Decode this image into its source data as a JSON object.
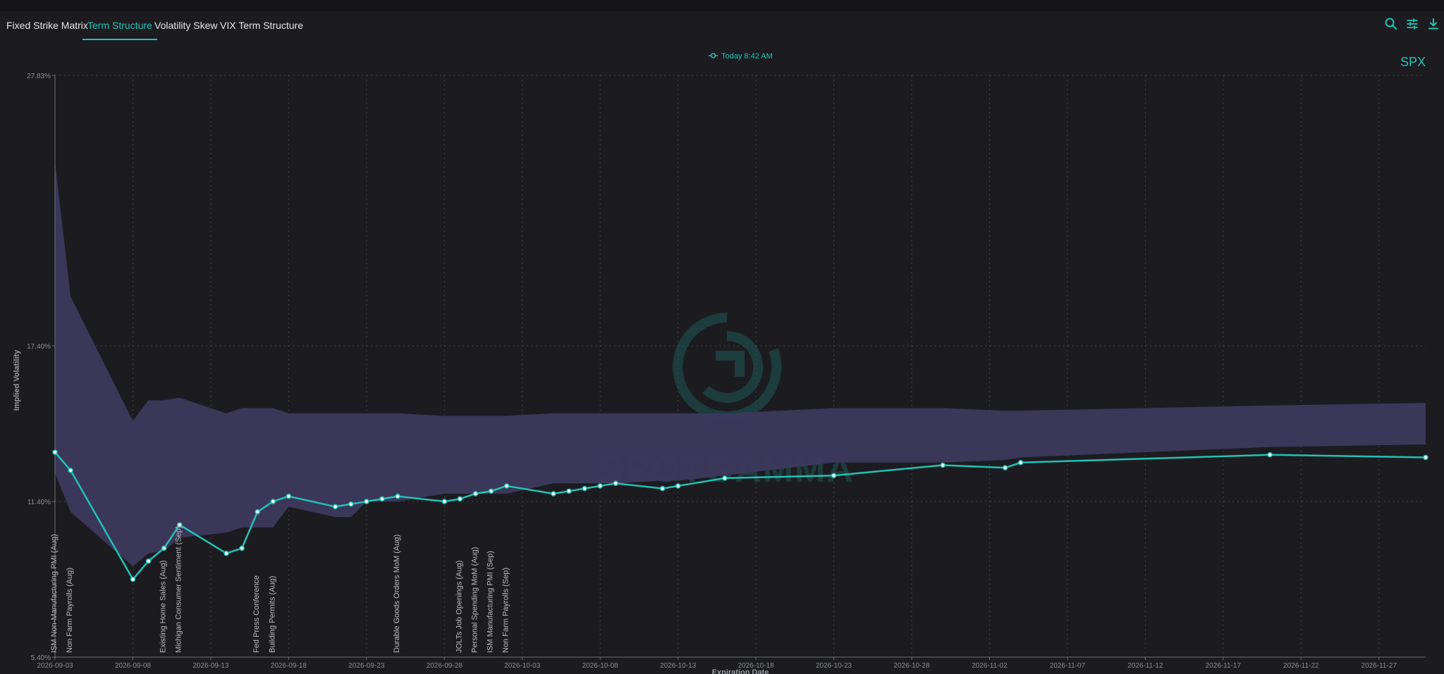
{
  "tabs": [
    {
      "label": "Fixed Strike Matrix",
      "active": false
    },
    {
      "label": "Term Structure",
      "active": true
    },
    {
      "label": "Volatility Skew",
      "active": false
    },
    {
      "label": "VIX Term Structure",
      "active": false
    }
  ],
  "toolbar": {
    "icons": [
      "search-icon",
      "sliders-icon",
      "download-icon",
      "info-icon"
    ]
  },
  "colors": {
    "accent": "#22c2b6",
    "band": "#3d3a5e",
    "background": "#1c1c20"
  },
  "chart_data": {
    "type": "line",
    "symbol": "SPX",
    "legend": "Today 8:42 AM",
    "legend_placement": "top-center",
    "watermark": "SPOTGAMMA",
    "xlabel": "Expiration Date",
    "ylabel": "Implied Volatility",
    "grid": true,
    "ylim": [
      5.4,
      27.83
    ],
    "y_ticks": [
      "27.83%",
      "17.40%",
      "11.40%",
      "5.40%"
    ],
    "y_tick_values": [
      27.83,
      17.4,
      11.4,
      5.4
    ],
    "xlim": [
      "2026-09-03",
      "2026-11-30"
    ],
    "x_ticks": [
      "2026-09-03",
      "2026-09-08",
      "2026-09-13",
      "2026-09-18",
      "2026-09-23",
      "2026-09-28",
      "2026-10-03",
      "2026-10-08",
      "2026-10-13",
      "2026-10-18",
      "2026-10-23",
      "2026-10-28",
      "2026-11-02",
      "2026-11-07",
      "2026-11-12",
      "2026-11-17",
      "2026-11-22",
      "2026-11-27"
    ],
    "series": [
      {
        "name": "Today 8:42 AM",
        "x": [
          "2026-09-03",
          "2026-09-04",
          "2026-09-08",
          "2026-09-09",
          "2026-09-10",
          "2026-09-11",
          "2026-09-14",
          "2026-09-15",
          "2026-09-16",
          "2026-09-17",
          "2026-09-18",
          "2026-09-21",
          "2026-09-22",
          "2026-09-23",
          "2026-09-24",
          "2026-09-25",
          "2026-09-28",
          "2026-09-29",
          "2026-09-30",
          "2026-10-01",
          "2026-10-02",
          "2026-10-05",
          "2026-10-06",
          "2026-10-07",
          "2026-10-08",
          "2026-10-09",
          "2026-10-12",
          "2026-10-13",
          "2026-10-16",
          "2026-10-23",
          "2026-10-30",
          "2026-11-03",
          "2026-11-04",
          "2026-11-20",
          "2026-11-30"
        ],
        "values": [
          13.3,
          12.6,
          8.4,
          9.1,
          9.6,
          10.5,
          9.4,
          9.6,
          11.0,
          11.4,
          11.6,
          11.2,
          11.3,
          11.4,
          11.5,
          11.6,
          11.4,
          11.5,
          11.7,
          11.8,
          12.0,
          11.7,
          11.8,
          11.9,
          12.0,
          12.1,
          11.9,
          12.0,
          12.3,
          12.4,
          12.8,
          12.7,
          12.9,
          13.2,
          13.1
        ]
      }
    ],
    "band": {
      "x": [
        "2026-09-03",
        "2026-09-04",
        "2026-09-08",
        "2026-09-09",
        "2026-09-10",
        "2026-09-11",
        "2026-09-14",
        "2026-09-15",
        "2026-09-16",
        "2026-09-17",
        "2026-09-18",
        "2026-09-21",
        "2026-09-22",
        "2026-09-23",
        "2026-09-24",
        "2026-09-25",
        "2026-09-28",
        "2026-09-29",
        "2026-09-30",
        "2026-10-01",
        "2026-10-02",
        "2026-10-05",
        "2026-10-06",
        "2026-10-07",
        "2026-10-08",
        "2026-10-09",
        "2026-10-12",
        "2026-10-13",
        "2026-10-16",
        "2026-10-23",
        "2026-10-30",
        "2026-11-03",
        "2026-11-04",
        "2026-11-20",
        "2026-11-30"
      ],
      "high": [
        24.5,
        19.3,
        14.5,
        15.3,
        15.3,
        15.4,
        14.8,
        15.0,
        15.0,
        15.0,
        14.8,
        14.8,
        14.8,
        14.8,
        14.8,
        14.8,
        14.7,
        14.7,
        14.7,
        14.7,
        14.7,
        14.8,
        14.8,
        14.8,
        14.8,
        14.8,
        14.8,
        14.8,
        14.8,
        15.0,
        15.0,
        14.9,
        14.9,
        15.1,
        15.2
      ],
      "low": [
        12.5,
        11.0,
        8.9,
        9.4,
        9.5,
        10.0,
        10.2,
        10.4,
        10.4,
        10.4,
        11.2,
        10.8,
        10.8,
        11.4,
        11.4,
        11.4,
        11.7,
        11.7,
        11.7,
        11.7,
        11.7,
        12.1,
        12.1,
        12.1,
        12.1,
        12.1,
        12.2,
        12.2,
        12.4,
        12.9,
        12.9,
        13.0,
        13.1,
        13.5,
        13.6
      ]
    },
    "events": [
      {
        "date": "2026-09-03",
        "label": "ISM Non-Manufacturing PMI (Aug)"
      },
      {
        "date": "2026-09-04",
        "label": "Non Farm Payrolls (Aug)"
      },
      {
        "date": "2026-09-10",
        "label": "Existing Home Sales (Aug)"
      },
      {
        "date": "2026-09-11",
        "label": "Michigan Consumer Sentiment (Sep)"
      },
      {
        "date": "2026-09-16",
        "label": "Fed Press Conference"
      },
      {
        "date": "2026-09-17",
        "label": "Building Permits (Aug)"
      },
      {
        "date": "2026-09-25",
        "label": "Durable Goods Orders MoM (Aug)"
      },
      {
        "date": "2026-09-29",
        "label": "JOLTs Job Openings (Aug)"
      },
      {
        "date": "2026-09-30",
        "label": "Personal Spending MoM (Aug)"
      },
      {
        "date": "2026-10-01",
        "label": "ISM Manufacturing PMI (Sep)"
      },
      {
        "date": "2026-10-02",
        "label": "Non Farm Payrolls (Sep)"
      }
    ]
  }
}
